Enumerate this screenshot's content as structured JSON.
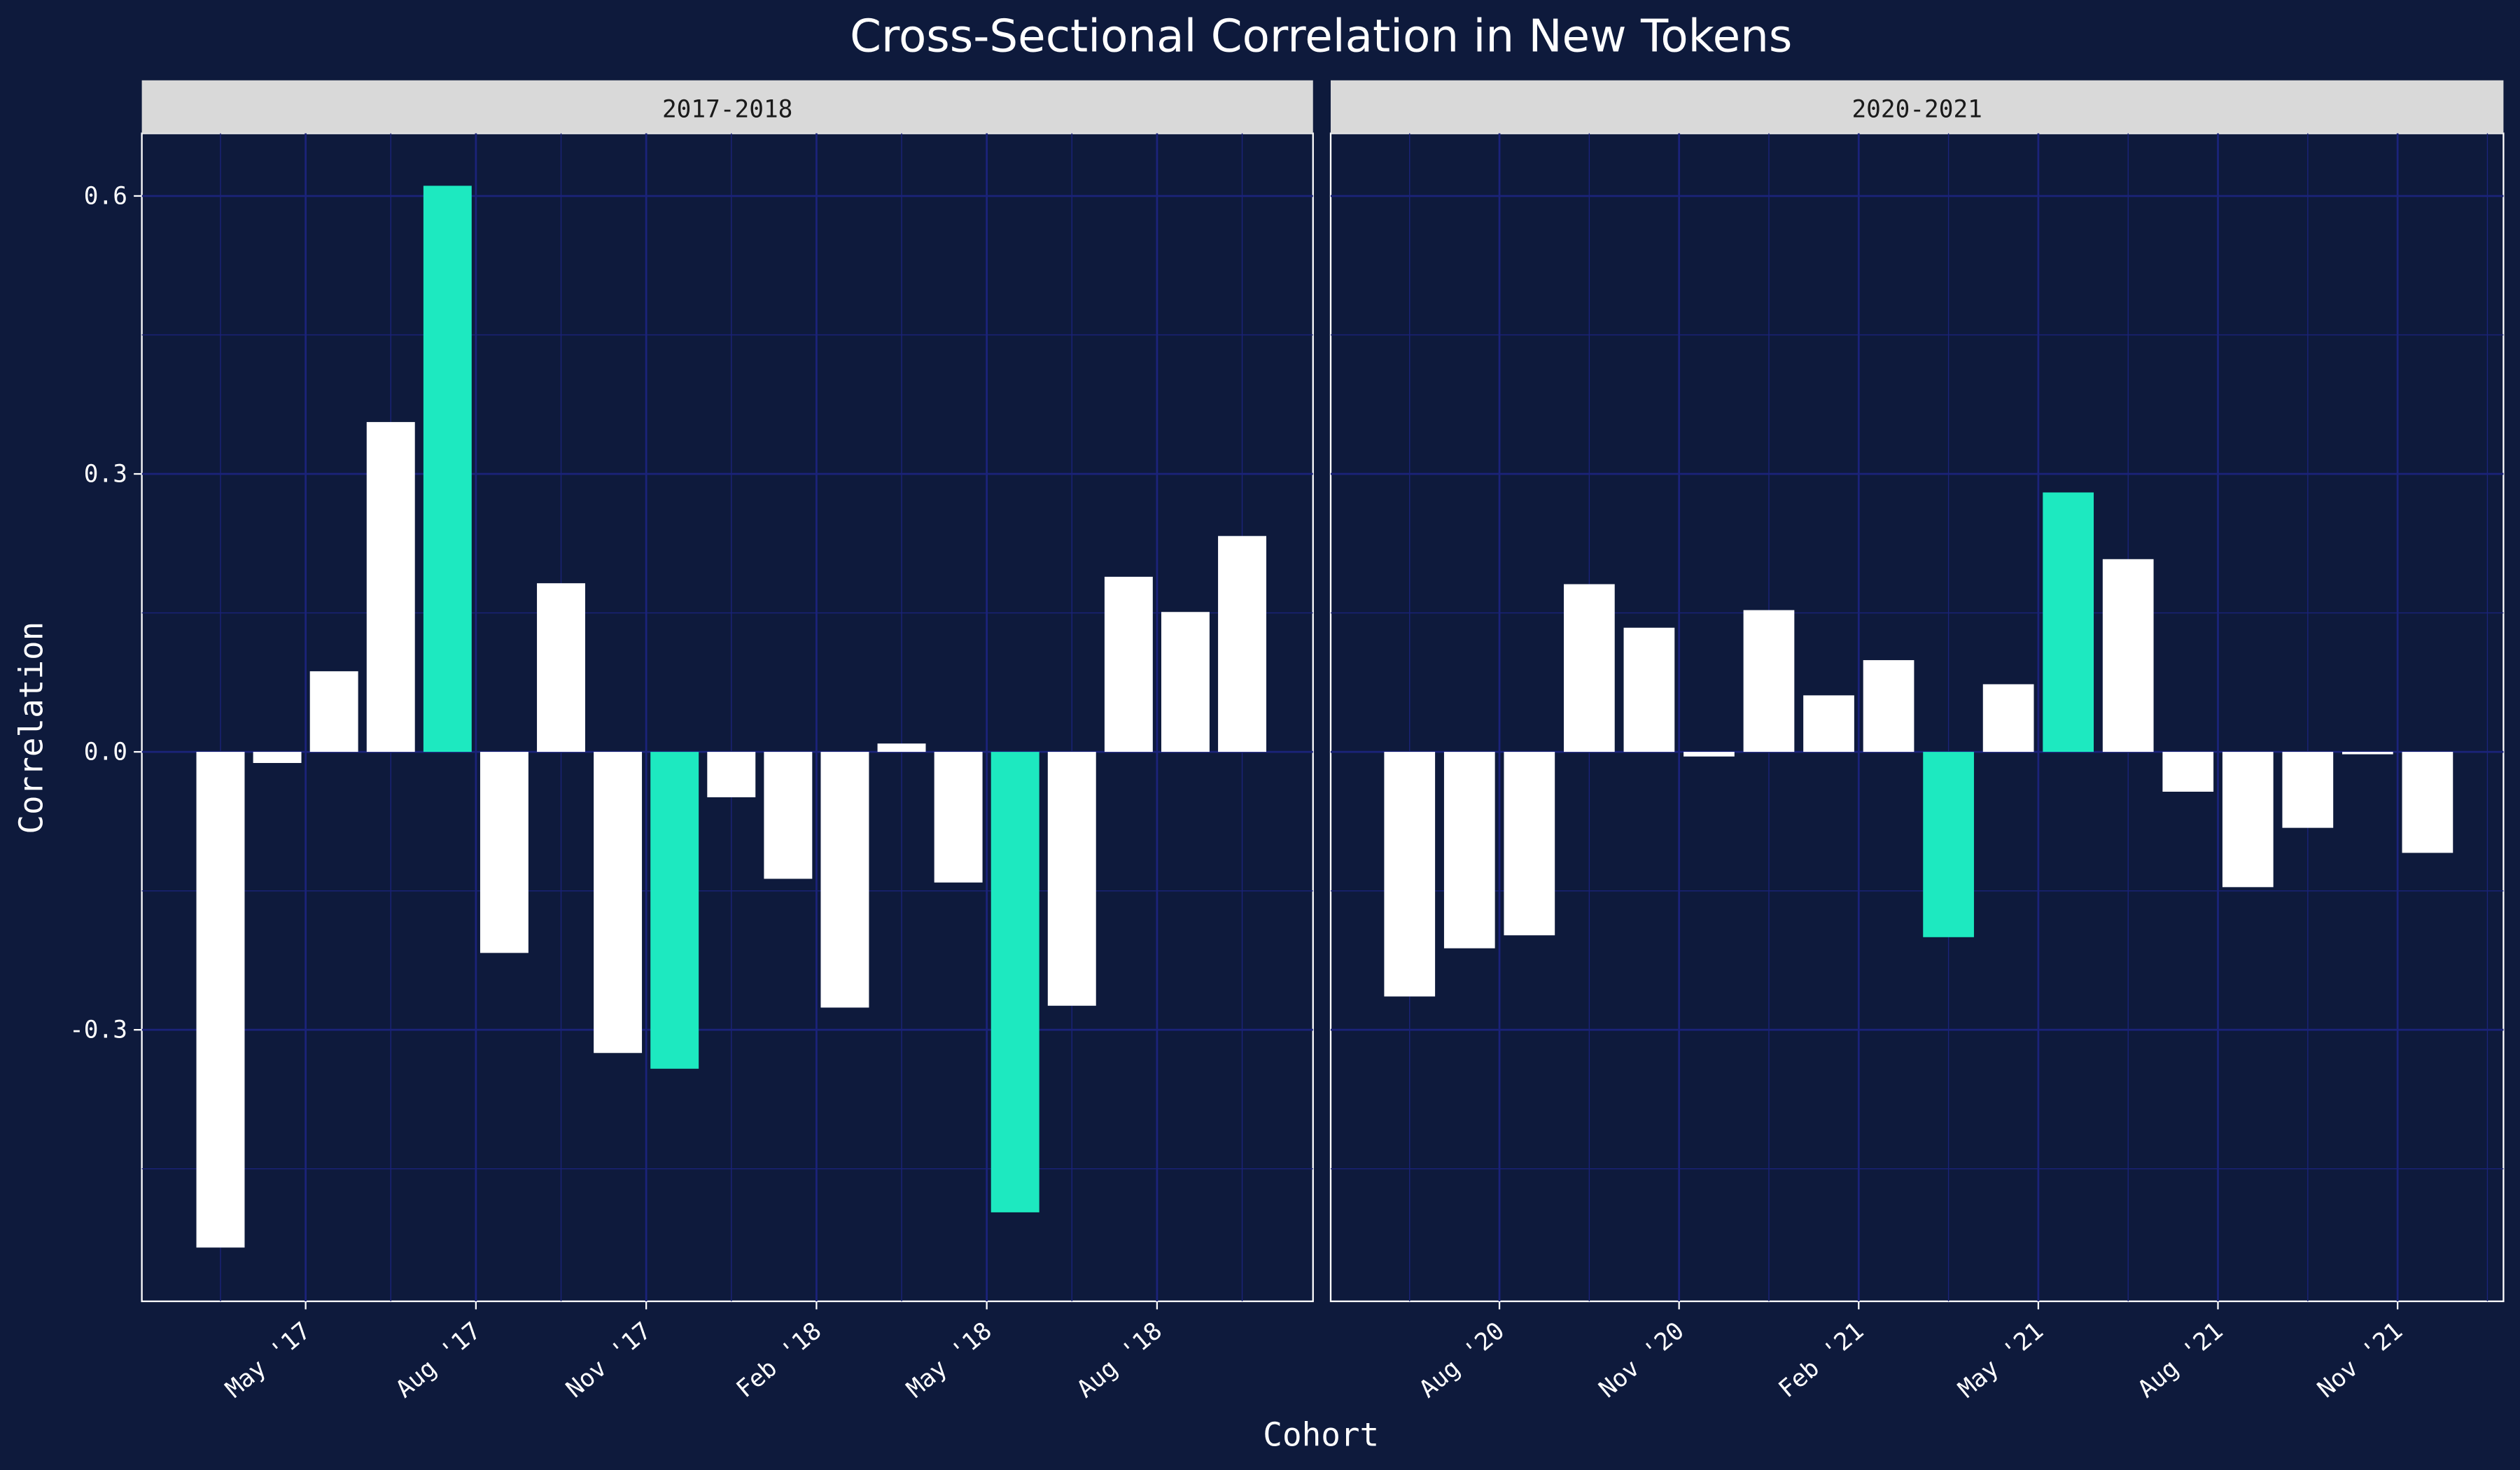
{
  "chart_data": {
    "type": "bar",
    "title": "Cross-Sectional Correlation in New Tokens",
    "xlabel": "Cohort",
    "ylabel": "Correlation",
    "ylim": [
      -0.57,
      0.67
    ],
    "yticks": [
      "0.6",
      "0.3",
      "0.0",
      "-0.3"
    ],
    "ytick_values": [
      0.6,
      0.3,
      0.0,
      -0.3
    ],
    "grid": true,
    "colors": {
      "background": "#0e1a3c",
      "bar": "#ffffff",
      "highlight": "#1de9c0",
      "grid": "#1b237a",
      "strip": "#d9d9d9"
    },
    "panels": [
      {
        "label": "2017-2018",
        "categories": [
          "Mar '17",
          "Apr '17",
          "May '17",
          "Jun '17",
          "Jul '17",
          "Aug '17",
          "Sep '17",
          "Oct '17",
          "Nov '17",
          "Dec '17",
          "Jan '18",
          "Feb '18",
          "Mar '18",
          "Apr '18",
          "May '18",
          "Jun '18",
          "Jul '18",
          "Aug '18",
          "Sep '18"
        ],
        "values": [
          -0.535,
          -0.012,
          0.087,
          0.356,
          0.611,
          -0.217,
          0.182,
          -0.325,
          -0.342,
          -0.049,
          -0.137,
          -0.276,
          0.009,
          -0.141,
          -0.497,
          -0.274,
          0.189,
          0.151,
          0.233
        ],
        "highlight": [
          false,
          false,
          false,
          false,
          true,
          false,
          false,
          false,
          true,
          false,
          false,
          false,
          false,
          false,
          true,
          false,
          false,
          false,
          false
        ],
        "xticks": [
          "May '17",
          "Aug '17",
          "Nov '17",
          "Feb '18",
          "May '18",
          "Aug '18"
        ],
        "xtick_month_index": [
          2,
          5,
          8,
          11,
          14,
          17
        ]
      },
      {
        "label": "2020-2021",
        "categories": [
          "Jun '20",
          "Jul '20",
          "Aug '20",
          "Sep '20",
          "Oct '20",
          "Nov '20",
          "Dec '20",
          "Jan '21",
          "Feb '21",
          "Mar '21",
          "Apr '21",
          "May '21",
          "Jun '21",
          "Jul '21",
          "Aug '21",
          "Sep '21",
          "Oct '21",
          "Nov '21"
        ],
        "values": [
          -0.264,
          -0.212,
          -0.198,
          0.181,
          0.134,
          -0.005,
          0.153,
          0.061,
          0.099,
          -0.2,
          0.073,
          0.28,
          0.208,
          -0.043,
          -0.146,
          -0.082,
          -0.002,
          -0.109
        ],
        "highlight": [
          false,
          false,
          false,
          false,
          false,
          false,
          false,
          false,
          false,
          true,
          false,
          true,
          false,
          false,
          false,
          false,
          false,
          false
        ],
        "xticks": [
          "Aug '20",
          "Nov '20",
          "Feb '21",
          "May '21",
          "Aug '21",
          "Nov '21"
        ],
        "xtick_month_index": [
          2,
          5,
          8,
          11,
          14,
          17
        ]
      }
    ]
  }
}
